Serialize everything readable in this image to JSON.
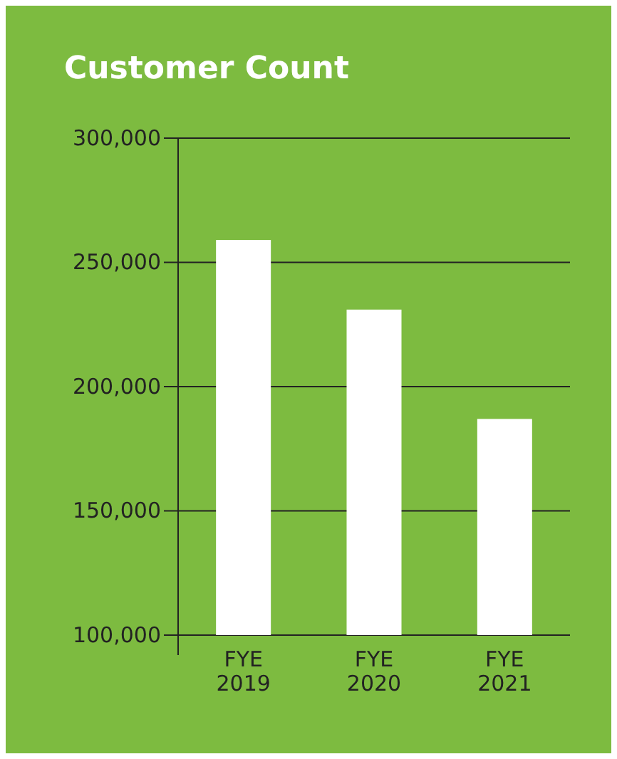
{
  "chart_data": {
    "type": "bar",
    "title": "Customer Count",
    "categories": [
      "FYE 2019",
      "FYE 2020",
      "FYE 2021"
    ],
    "values": [
      259000,
      231000,
      187000
    ],
    "color": "#ffffff",
    "ylim": [
      100000,
      300000
    ],
    "yticks": [
      {
        "value": 100000,
        "label": "100,000"
      },
      {
        "value": 150000,
        "label": "150,000"
      },
      {
        "value": 200000,
        "label": "200,000"
      },
      {
        "value": 250000,
        "label": "250,000"
      },
      {
        "value": 300000,
        "label": "300,000"
      }
    ],
    "grid": "y"
  }
}
